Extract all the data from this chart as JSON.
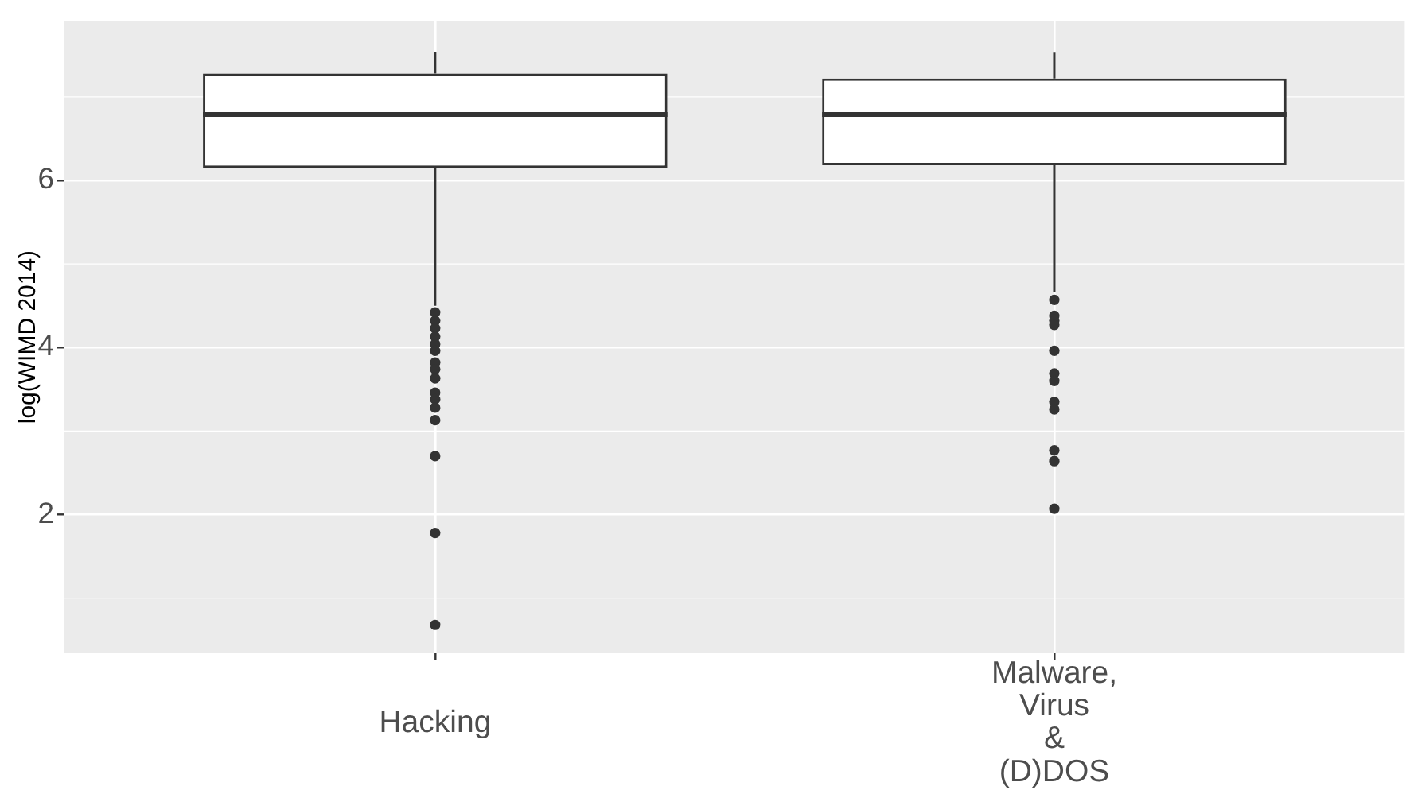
{
  "chart_data": {
    "type": "box",
    "ylabel": "log(WIMD 2014)",
    "categories": [
      "Hacking",
      "Malware,\nVirus\n&\n(D)DOS"
    ],
    "color": "#333333",
    "ylim": [
      0.34,
      7.91
    ],
    "yticks": [
      2,
      4,
      6
    ],
    "grid": true,
    "boxes": [
      {
        "low": 4.5,
        "q1": 6.15,
        "median": 6.79,
        "q3": 7.28,
        "high": 7.54,
        "outliers": [
          4.42,
          4.32,
          4.23,
          4.13,
          4.04,
          3.96,
          3.82,
          3.74,
          3.63,
          3.46,
          3.38,
          3.28,
          3.13,
          2.7,
          1.78,
          0.68
        ]
      },
      {
        "low": 4.66,
        "q1": 6.18,
        "median": 6.79,
        "q3": 7.22,
        "high": 7.53,
        "outliers": [
          4.57,
          4.38,
          4.32,
          4.27,
          3.96,
          3.69,
          3.6,
          3.35,
          3.26,
          2.77,
          2.64,
          2.07
        ]
      }
    ]
  }
}
